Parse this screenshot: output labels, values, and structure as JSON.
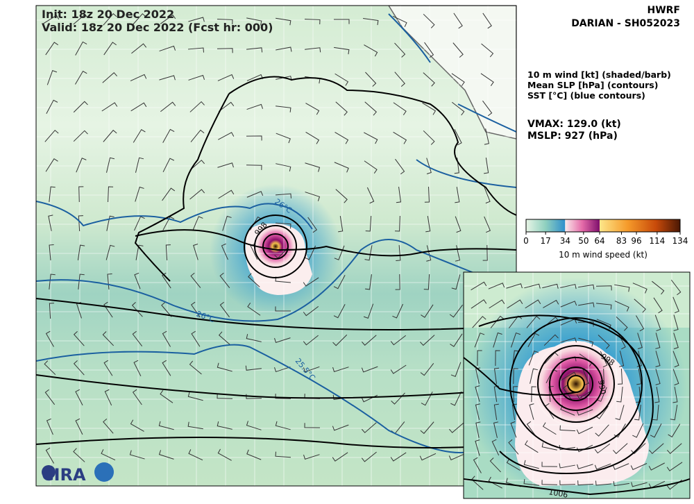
{
  "header": {
    "init": "Init:   18z 20 Dec 2022",
    "valid": "Valid: 18z 20 Dec 2022 (Fcst hr: 000)",
    "model": "HWRF",
    "storm": "DARIAN - SH052023"
  },
  "legend": {
    "lines": [
      "10 m wind [kt] (shaded/barb)",
      "Mean SLP [hPa] (contours)",
      "SST [°C] (blue contours)"
    ],
    "vmax": "VMAX: 129.0 (kt)",
    "mslp": "MSLP:  927 (hPa)"
  },
  "colorbar": {
    "ticks": [
      0,
      17,
      34,
      50,
      64,
      83,
      96,
      114,
      134
    ],
    "label": "10 m wind speed (kt)"
  },
  "map": {
    "contour_labels": [
      "998",
      "26°C",
      "26°C",
      "25.5°C"
    ],
    "logo": "CIRA"
  },
  "inset": {
    "contour_labels": [
      "998",
      "990",
      "1006"
    ]
  }
}
